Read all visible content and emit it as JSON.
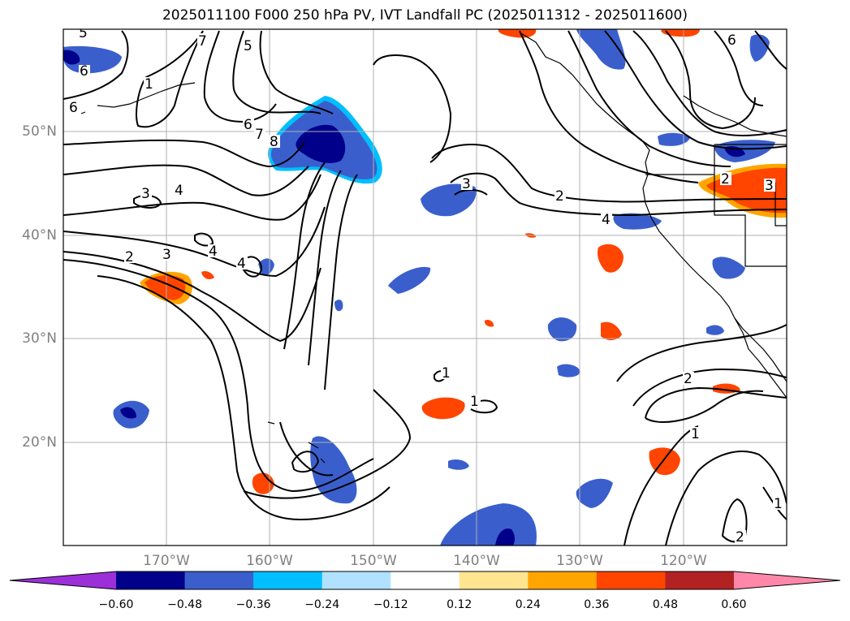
{
  "title": "2025011100 F000 250 hPa PV, IVT Landfall PC (2025011312 - 2025011600)",
  "lat_labels": [
    "50°N",
    "40°N",
    "30°N",
    "20°N"
  ],
  "lon_labels": [
    "170°W",
    "160°W",
    "150°W",
    "140°W",
    "130°W",
    "120°W"
  ],
  "colorbar": {
    "ticks": [
      "−0.60",
      "−0.48",
      "−0.36",
      "−0.24",
      "−0.12",
      "0.12",
      "0.24",
      "0.36",
      "0.48",
      "0.60"
    ],
    "colors": [
      "#9b30d9",
      "#00008b",
      "#3a5fcd",
      "#00bfff",
      "#b0e2ff",
      "#ffffff",
      "#ffe58f",
      "#ffa500",
      "#ff4500",
      "#b22222",
      "#ff88aa"
    ]
  },
  "colors": {
    "pos_strong": "#ff4500",
    "pos_mid": "#ffa500",
    "pos_weak": "#ffe58f",
    "neg_strong": "#00008b",
    "neg_mid": "#3a5fcd",
    "neg_weak": "#00bfff",
    "grid": "#b0b0b0",
    "contour": "#000000"
  },
  "contour_labels": [
    "5",
    "7",
    "5",
    "6",
    "6",
    "3",
    "4",
    "6",
    "7",
    "8",
    "3",
    "2",
    "4",
    "2",
    "3",
    "4",
    "4",
    "2",
    "1",
    "3",
    "2",
    "1",
    "1",
    "2",
    "1",
    "1",
    "2",
    "6"
  ]
}
